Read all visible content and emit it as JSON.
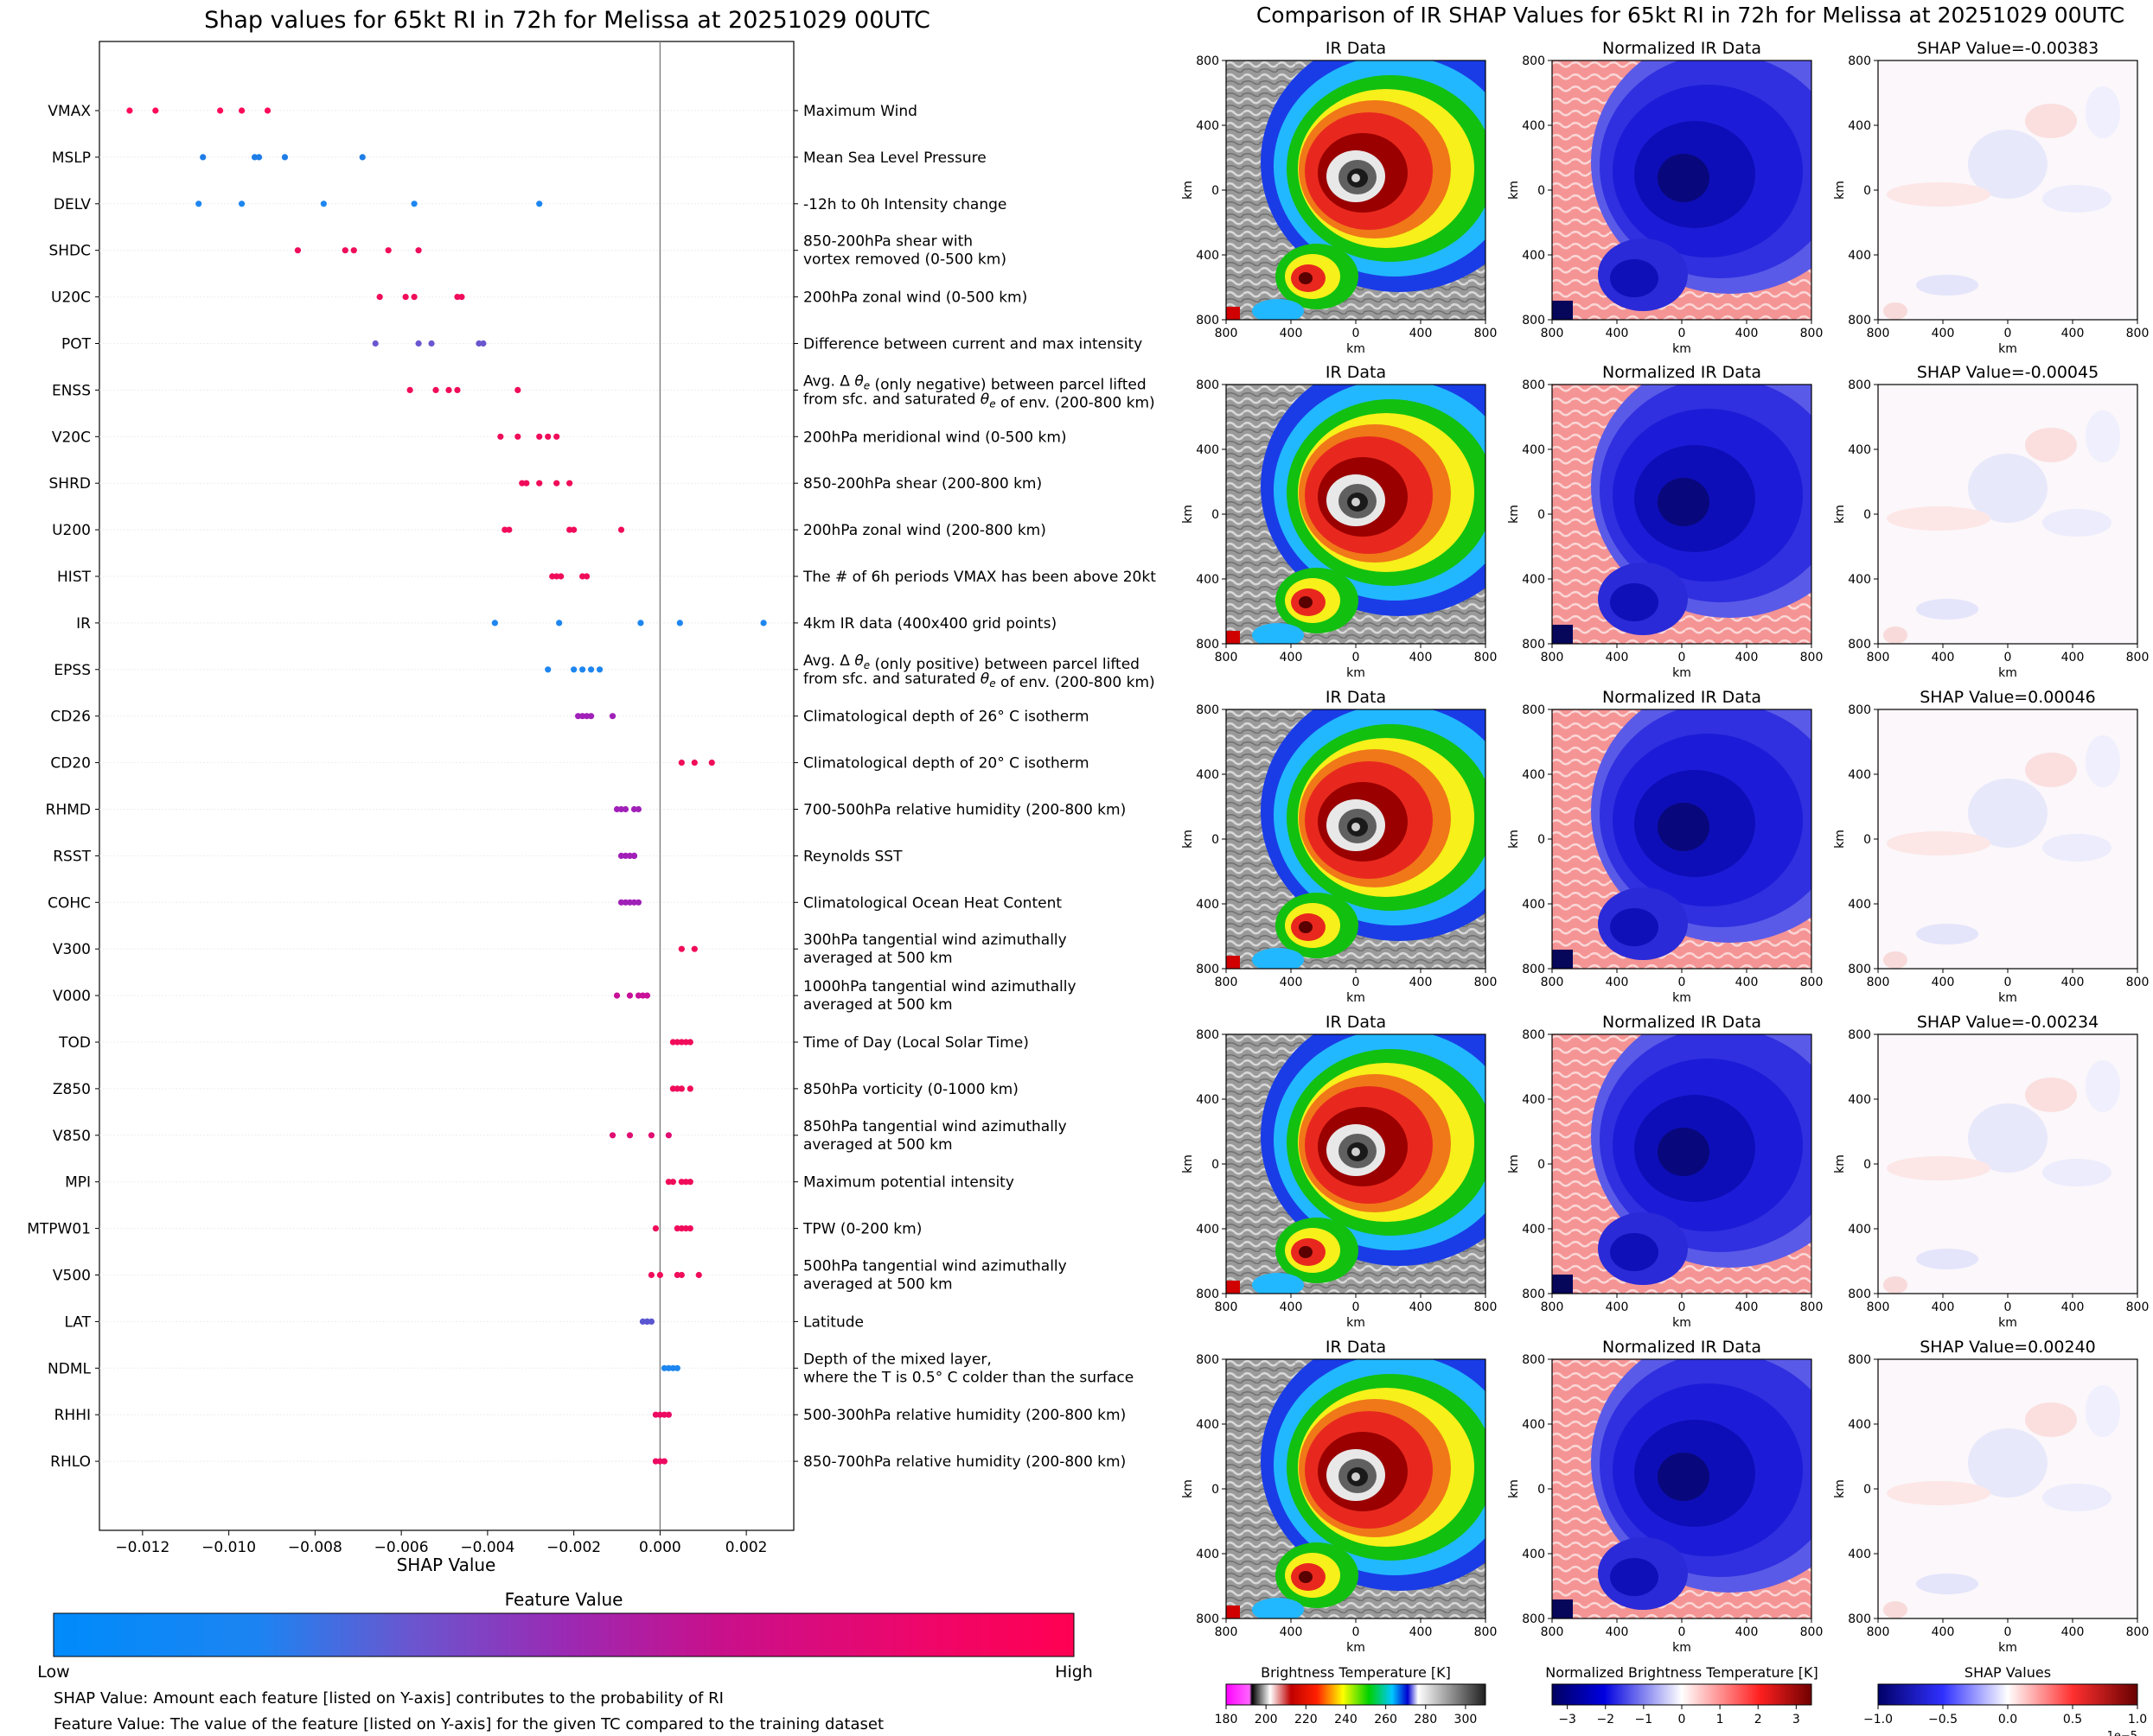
{
  "chart_data": [
    {
      "type": "scatter",
      "title": "Shap values for 65kt RI in 72h for Melissa at 20251029 00UTC",
      "xlabel": "SHAP Value",
      "xlim": [
        -0.013,
        0.0031
      ],
      "xticks": [
        "−0.012",
        "−0.010",
        "−0.008",
        "−0.006",
        "−0.004",
        "−0.002",
        "0.000",
        "0.002"
      ],
      "xtick_values": [
        -0.012,
        -0.01,
        -0.008,
        -0.006,
        -0.004,
        -0.002,
        0.0,
        0.002
      ],
      "features": [
        {
          "code": "VMAX",
          "desc": [
            "Maximum Wind"
          ],
          "color": "#ff0a58",
          "values": [
            -0.0123,
            -0.0117,
            -0.0102,
            -0.0097,
            -0.0091
          ]
        },
        {
          "code": "MSLP",
          "desc": [
            "Mean Sea Level Pressure"
          ],
          "color": "#1e7de6",
          "values": [
            -0.0106,
            -0.0094,
            -0.0093,
            -0.0087,
            -0.0069
          ]
        },
        {
          "code": "DELV",
          "desc": [
            "-12h to 0h Intensity change"
          ],
          "color": "#1e86f0",
          "values": [
            -0.0107,
            -0.0097,
            -0.0078,
            -0.0057,
            -0.0028
          ]
        },
        {
          "code": "SHDC",
          "desc": [
            "850-200hPa shear with",
            "vortex removed (0-500 km)"
          ],
          "color": "#f00c5a",
          "values": [
            -0.0084,
            -0.0073,
            -0.0071,
            -0.0063,
            -0.0056
          ]
        },
        {
          "code": "U20C",
          "desc": [
            "200hPa zonal wind (0-500 km)"
          ],
          "color": "#f00c5a",
          "values": [
            -0.0065,
            -0.0059,
            -0.0057,
            -0.0047,
            -0.0046
          ]
        },
        {
          "code": "POT",
          "desc": [
            "Difference between current and max intensity"
          ],
          "color": "#6a56cf",
          "values": [
            -0.0066,
            -0.0056,
            -0.0053,
            -0.0042,
            -0.0041
          ]
        },
        {
          "code": "ENSS",
          "desc": [
            "Avg. Δ θe (only negative) between parcel lifted",
            "from sfc. and saturated θe of env. (200-800 km)"
          ],
          "color": "#f00c5a",
          "values": [
            -0.0058,
            -0.0052,
            -0.0049,
            -0.0047,
            -0.0033
          ]
        },
        {
          "code": "V20C",
          "desc": [
            "200hPa meridional wind (0-500 km)"
          ],
          "color": "#f00c5a",
          "values": [
            -0.0037,
            -0.0033,
            -0.0028,
            -0.0026,
            -0.0024
          ]
        },
        {
          "code": "SHRD",
          "desc": [
            "850-200hPa shear (200-800 km)"
          ],
          "color": "#f00c5a",
          "values": [
            -0.0032,
            -0.0031,
            -0.0028,
            -0.0024,
            -0.0021
          ]
        },
        {
          "code": "U200",
          "desc": [
            "200hPa zonal wind (200-800 km)"
          ],
          "color": "#f00c5a",
          "values": [
            -0.0036,
            -0.0035,
            -0.0021,
            -0.002,
            -0.0009
          ]
        },
        {
          "code": "HIST",
          "desc": [
            "The # of 6h periods VMAX has been above 20kt"
          ],
          "color": "#f00c5a",
          "values": [
            -0.0025,
            -0.0024,
            -0.0023,
            -0.0018,
            -0.0017
          ]
        },
        {
          "code": "IR",
          "desc": [
            "4km IR data (400x400 grid points)"
          ],
          "color": "#1e86f0",
          "values": [
            -0.00383,
            -0.00234,
            -0.00045,
            0.00046,
            0.0024
          ]
        },
        {
          "code": "EPSS",
          "desc": [
            "Avg. Δ θe (only positive) between parcel lifted",
            "from sfc. and saturated θe of env. (200-800 km)"
          ],
          "color": "#1e86f0",
          "values": [
            -0.0026,
            -0.002,
            -0.0018,
            -0.0016,
            -0.0014
          ]
        },
        {
          "code": "CD26",
          "desc": [
            "Climatological depth of 26° C isotherm"
          ],
          "color": "#a020b8",
          "values": [
            -0.0019,
            -0.0018,
            -0.0017,
            -0.0016,
            -0.0011
          ]
        },
        {
          "code": "CD20",
          "desc": [
            "Climatological depth of 20° C isotherm"
          ],
          "color": "#f00c5a",
          "values": [
            0.0005,
            0.0008,
            0.0012
          ]
        },
        {
          "code": "RHMD",
          "desc": [
            "700-500hPa relative humidity (200-800 km)"
          ],
          "color": "#a020b8",
          "values": [
            -0.001,
            -0.0009,
            -0.0008,
            -0.0006,
            -0.0005
          ]
        },
        {
          "code": "RSST",
          "desc": [
            "Reynolds SST"
          ],
          "color": "#a020b8",
          "values": [
            -0.0009,
            -0.0008,
            -0.0007,
            -0.0006,
            -0.0006
          ]
        },
        {
          "code": "COHC",
          "desc": [
            "Climatological Ocean Heat Content"
          ],
          "color": "#a020b8",
          "values": [
            -0.0009,
            -0.0008,
            -0.0007,
            -0.0006,
            -0.0005
          ]
        },
        {
          "code": "V300",
          "desc": [
            "300hPa tangential wind azimuthally",
            "averaged at 500 km"
          ],
          "color": "#f00c5a",
          "values": [
            0.0005,
            0.0008
          ]
        },
        {
          "code": "V000",
          "desc": [
            "1000hPa tangential wind azimuthally",
            "averaged at 500 km"
          ],
          "color": "#c81099",
          "values": [
            -0.001,
            -0.0007,
            -0.0005,
            -0.0004,
            -0.0003
          ]
        },
        {
          "code": "TOD",
          "desc": [
            "Time of Day (Local Solar Time)"
          ],
          "color": "#f00c5a",
          "values": [
            0.0003,
            0.0004,
            0.0005,
            0.0006,
            0.0007
          ]
        },
        {
          "code": "Z850",
          "desc": [
            "850hPa vorticity (0-1000 km)"
          ],
          "color": "#f00c5a",
          "values": [
            0.0003,
            0.0004,
            0.0005,
            0.0007
          ]
        },
        {
          "code": "V850",
          "desc": [
            "850hPa tangential wind azimuthally",
            "averaged at 500 km"
          ],
          "color": "#e00d72",
          "values": [
            -0.0011,
            -0.0007,
            -0.0002,
            0.0002
          ]
        },
        {
          "code": "MPI",
          "desc": [
            "Maximum potential intensity"
          ],
          "color": "#f00c5a",
          "values": [
            0.0002,
            0.0003,
            0.0005,
            0.0006,
            0.0007
          ]
        },
        {
          "code": "MTPW01",
          "desc": [
            "TPW (0-200 km)"
          ],
          "color": "#f00c5a",
          "values": [
            -0.0001,
            0.0004,
            0.0005,
            0.0006,
            0.0007
          ]
        },
        {
          "code": "V500",
          "desc": [
            "500hPa tangential wind azimuthally",
            "averaged at 500 km"
          ],
          "color": "#f00c5a",
          "values": [
            -0.0002,
            0.0,
            0.0004,
            0.0005,
            0.0009
          ]
        },
        {
          "code": "LAT",
          "desc": [
            "Latitude"
          ],
          "color": "#5a55d0",
          "values": [
            -0.0004,
            -0.0003,
            -0.0003,
            -0.0002
          ]
        },
        {
          "code": "NDML",
          "desc": [
            "Depth of the mixed layer,",
            "where the T is 0.5° C colder than the surface"
          ],
          "color": "#1e86f0",
          "values": [
            0.0001,
            0.0002,
            0.0003,
            0.0004
          ]
        },
        {
          "code": "RHHI",
          "desc": [
            "500-300hPa relative humidity (200-800 km)"
          ],
          "color": "#ec0a62",
          "values": [
            -0.0001,
            0.0,
            0.0001,
            0.0002
          ]
        },
        {
          "code": "RHLO",
          "desc": [
            "850-700hPa relative humidity (200-800 km)"
          ],
          "color": "#ec0a62",
          "values": [
            -0.0001,
            0.0,
            0.0001
          ]
        }
      ]
    },
    {
      "type": "heatmap",
      "title": "Comparison of IR SHAP Values for 65kt RI in 72h for Melissa at 20251029 00UTC",
      "column_titles": [
        "IR Data",
        "Normalized IR Data"
      ],
      "shap_titles": [
        "SHAP Value=-0.00383",
        "SHAP Value=-0.00045",
        "SHAP Value=0.00046",
        "SHAP Value=-0.00234",
        "SHAP Value=0.00240"
      ],
      "axis_ticks": [
        "800",
        "400",
        "0",
        "400",
        "800"
      ],
      "axis_unit": "km",
      "colorbars": [
        {
          "label": "Brightness Temperature [K]",
          "ticks": [
            "180",
            "200",
            "220",
            "240",
            "260",
            "280",
            "300"
          ],
          "range": [
            180,
            310
          ]
        },
        {
          "label": "Normalized Brightness Temperature [K]",
          "ticks": [
            "−3",
            "−2",
            "−1",
            "0",
            "1",
            "2",
            "3"
          ],
          "range": [
            -3.4,
            3.4
          ]
        },
        {
          "label": "SHAP Values",
          "ticks": [
            "−1.0",
            "−0.5",
            "0.0",
            "0.5",
            "1.0"
          ],
          "range": [
            -1.0,
            1.0
          ],
          "scale_note": "1e−5"
        }
      ]
    }
  ],
  "legend": {
    "title": "Feature Value",
    "low": "Low",
    "high": "High",
    "note1": "SHAP Value: Amount each feature [listed on Y-axis] contributes to the probability of RI",
    "note2": "Feature Value: The value of the feature [listed on Y-axis] for the given TC compared to the training dataset"
  },
  "colors": {
    "low": "#008bfb",
    "high": "#ff0052",
    "ir_red": "#e8281e",
    "norm_pink": "#f5a0a0",
    "norm_blue": "#1c1cd8"
  }
}
